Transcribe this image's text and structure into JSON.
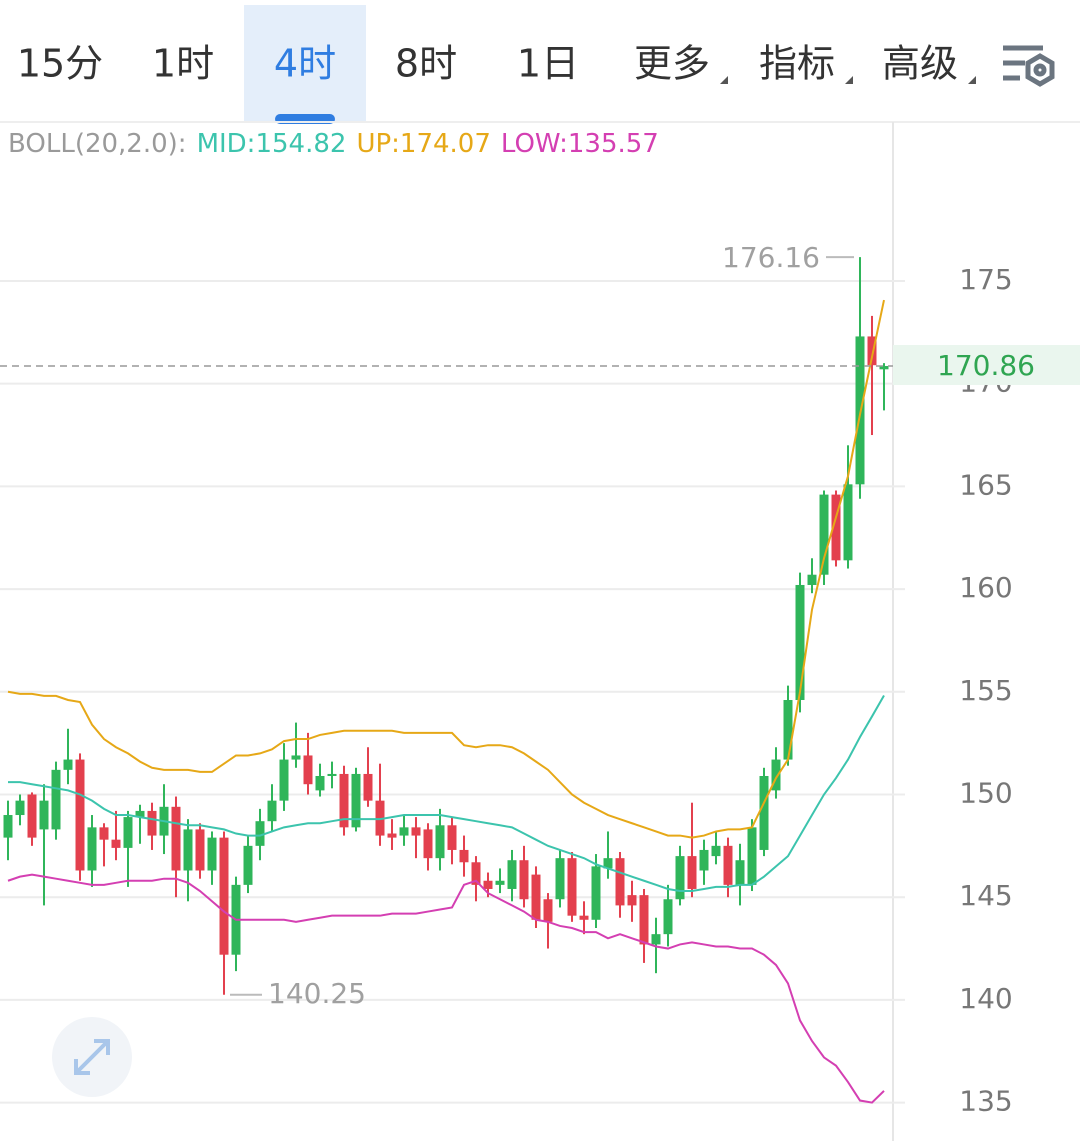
{
  "tabs": [
    {
      "label": "15分"
    },
    {
      "label": "1时"
    },
    {
      "label": "4时"
    },
    {
      "label": "8时"
    },
    {
      "label": "1日"
    },
    {
      "label": "更多",
      "dropdown": true
    },
    {
      "label": "指标",
      "dropdown": true
    },
    {
      "label": "高级",
      "dropdown": true
    }
  ],
  "selected_tab": 2,
  "chart_data": {
    "type": "candlestick",
    "indicator": "BOLL(20,2.0):",
    "ohlc": {
      "open": [
        147.9,
        149.0,
        150.0,
        148.3,
        148.3,
        151.2,
        151.7,
        146.3,
        148.4,
        147.8,
        147.4,
        148.9,
        149.2,
        148.0,
        149.4,
        146.3,
        148.3,
        146.3,
        147.9,
        142.2,
        145.6,
        147.5,
        148.7,
        149.7,
        151.7,
        151.9,
        150.2,
        150.9,
        151.0,
        148.4,
        151.0,
        149.7,
        148.1,
        148.0,
        148.4,
        148.3,
        146.9,
        148.5,
        147.3,
        146.7,
        145.8,
        145.6,
        145.4,
        146.8,
        146.1,
        144.9,
        144.9,
        146.9,
        144.1,
        143.9,
        146.4,
        146.9,
        145.1,
        145.1,
        142.7,
        143.2,
        144.9,
        147.0,
        146.3,
        147.0,
        147.5,
        145.6,
        145.6,
        147.3,
        150.2,
        151.7,
        154.6,
        160.2,
        160.7,
        164.6,
        161.4,
        165.1,
        172.3,
        170.7
      ],
      "high": [
        149.7,
        150.0,
        150.1,
        150.5,
        151.6,
        153.2,
        152.0,
        149.0,
        148.6,
        149.2,
        149.2,
        149.5,
        149.6,
        150.5,
        149.9,
        148.8,
        148.6,
        148.2,
        148.2,
        146.0,
        148.0,
        149.3,
        150.5,
        152.5,
        153.5,
        153.0,
        151.5,
        151.6,
        151.4,
        151.3,
        152.3,
        151.5,
        148.8,
        149.0,
        148.9,
        148.6,
        149.3,
        148.9,
        148.0,
        147.0,
        146.2,
        146.4,
        147.3,
        147.5,
        146.5,
        145.2,
        147.3,
        147.2,
        144.8,
        147.1,
        148.2,
        147.2,
        145.8,
        145.4,
        144.0,
        145.6,
        147.5,
        149.6,
        147.8,
        148.2,
        147.9,
        147.6,
        148.8,
        151.3,
        152.3,
        155.3,
        160.8,
        161.5,
        164.8,
        164.8,
        167.0,
        176.16,
        173.3,
        171.0
      ],
      "low": [
        146.8,
        148.5,
        147.5,
        144.6,
        147.8,
        150.5,
        145.8,
        145.5,
        146.5,
        146.8,
        145.5,
        147.6,
        147.3,
        147.1,
        145.0,
        144.8,
        145.9,
        145.6,
        140.25,
        141.4,
        145.2,
        146.8,
        148.2,
        149.2,
        151.3,
        150.0,
        149.9,
        150.3,
        148.0,
        148.2,
        149.4,
        147.5,
        147.3,
        147.5,
        146.9,
        146.3,
        146.3,
        146.6,
        146.0,
        144.8,
        145.0,
        145.2,
        144.8,
        144.5,
        143.5,
        142.5,
        144.5,
        143.8,
        143.2,
        143.5,
        145.9,
        144.0,
        143.8,
        141.8,
        141.3,
        142.6,
        144.6,
        145.0,
        145.6,
        146.6,
        145.0,
        144.6,
        145.3,
        147.0,
        149.8,
        151.4,
        154.0,
        159.8,
        160.2,
        161.1,
        161.0,
        164.4,
        167.5,
        168.7
      ],
      "close": [
        149.0,
        149.7,
        147.9,
        149.7,
        151.2,
        151.7,
        146.3,
        148.4,
        147.8,
        147.4,
        148.9,
        149.2,
        148.0,
        149.4,
        146.3,
        148.3,
        146.3,
        147.9,
        142.2,
        145.6,
        147.5,
        148.7,
        149.7,
        151.7,
        151.9,
        150.5,
        150.9,
        151.0,
        148.4,
        151.0,
        149.7,
        148.0,
        147.9,
        148.4,
        148.0,
        146.9,
        148.5,
        147.3,
        146.7,
        145.6,
        145.4,
        145.8,
        146.8,
        144.9,
        143.9,
        143.8,
        146.9,
        144.1,
        143.9,
        146.5,
        146.9,
        144.6,
        144.6,
        142.7,
        143.2,
        144.9,
        147.0,
        145.4,
        147.3,
        147.5,
        145.6,
        146.8,
        148.4,
        150.9,
        151.7,
        154.6,
        160.2,
        160.7,
        164.6,
        161.4,
        165.1,
        172.3,
        170.9,
        170.86
      ]
    },
    "series": [
      {
        "name": "MID:",
        "color": "#3cc4ad",
        "values": [
          150.6,
          150.6,
          150.5,
          150.4,
          150.3,
          150.2,
          150.0,
          149.7,
          149.3,
          149.0,
          149.0,
          148.9,
          148.8,
          148.7,
          148.6,
          148.5,
          148.5,
          148.4,
          148.3,
          148.1,
          148.0,
          148.0,
          148.2,
          148.4,
          148.5,
          148.6,
          148.6,
          148.7,
          148.8,
          148.8,
          148.8,
          148.8,
          148.9,
          149.0,
          149.0,
          149.0,
          149.0,
          148.9,
          148.8,
          148.7,
          148.6,
          148.5,
          148.4,
          148.1,
          147.8,
          147.5,
          147.3,
          147.1,
          146.9,
          146.6,
          146.4,
          146.2,
          146.0,
          145.8,
          145.6,
          145.4,
          145.3,
          145.3,
          145.4,
          145.5,
          145.5,
          145.6,
          145.6,
          146.0,
          146.5,
          147.0,
          148.0,
          149.0,
          150.0,
          150.8,
          151.7,
          152.8,
          153.8,
          154.82
        ]
      },
      {
        "name": "UP:",
        "color": "#e6a817",
        "values": [
          155.0,
          154.9,
          154.9,
          154.8,
          154.8,
          154.6,
          154.5,
          153.4,
          152.7,
          152.3,
          152.0,
          151.6,
          151.3,
          151.2,
          151.2,
          151.2,
          151.1,
          151.1,
          151.5,
          151.9,
          151.9,
          152.0,
          152.2,
          152.6,
          152.7,
          152.7,
          152.9,
          153.0,
          153.1,
          153.1,
          153.1,
          153.1,
          153.1,
          153.0,
          153.0,
          153.0,
          153.0,
          153.0,
          152.4,
          152.3,
          152.4,
          152.4,
          152.3,
          152.0,
          151.6,
          151.2,
          150.6,
          150.0,
          149.6,
          149.3,
          149.0,
          148.8,
          148.6,
          148.4,
          148.2,
          148.0,
          148.0,
          147.9,
          148.0,
          148.2,
          148.3,
          148.3,
          148.4,
          149.6,
          150.8,
          151.7,
          155.0,
          159.0,
          161.5,
          163.5,
          165.5,
          168.5,
          171.3,
          174.07
        ]
      },
      {
        "name": "LOW:",
        "color": "#d43fb2",
        "values": [
          145.8,
          146.0,
          146.1,
          146.0,
          145.9,
          145.8,
          145.7,
          145.6,
          145.6,
          145.7,
          145.8,
          145.8,
          145.8,
          145.9,
          145.9,
          145.7,
          145.3,
          144.8,
          144.3,
          143.9,
          143.9,
          143.9,
          143.9,
          143.9,
          143.8,
          143.9,
          144.0,
          144.1,
          144.1,
          144.1,
          144.1,
          144.1,
          144.2,
          144.2,
          144.2,
          144.3,
          144.4,
          144.5,
          145.6,
          145.8,
          145.2,
          144.9,
          144.6,
          144.3,
          143.9,
          143.8,
          143.6,
          143.5,
          143.3,
          143.3,
          143.0,
          143.2,
          143.0,
          142.8,
          142.6,
          142.5,
          142.7,
          142.8,
          142.7,
          142.6,
          142.6,
          142.5,
          142.5,
          142.2,
          141.7,
          140.8,
          139.0,
          138.0,
          137.2,
          136.8,
          136.0,
          135.1,
          135.0,
          135.57
        ]
      }
    ],
    "ylim": [
      133.13,
      182.74
    ],
    "yticks": [
      135,
      140,
      145,
      150,
      155,
      160,
      165,
      170,
      175
    ],
    "grid": true,
    "up_color": "#2fb55a",
    "down_color": "#e3404e",
    "price_color": "#2fa551"
  }
}
